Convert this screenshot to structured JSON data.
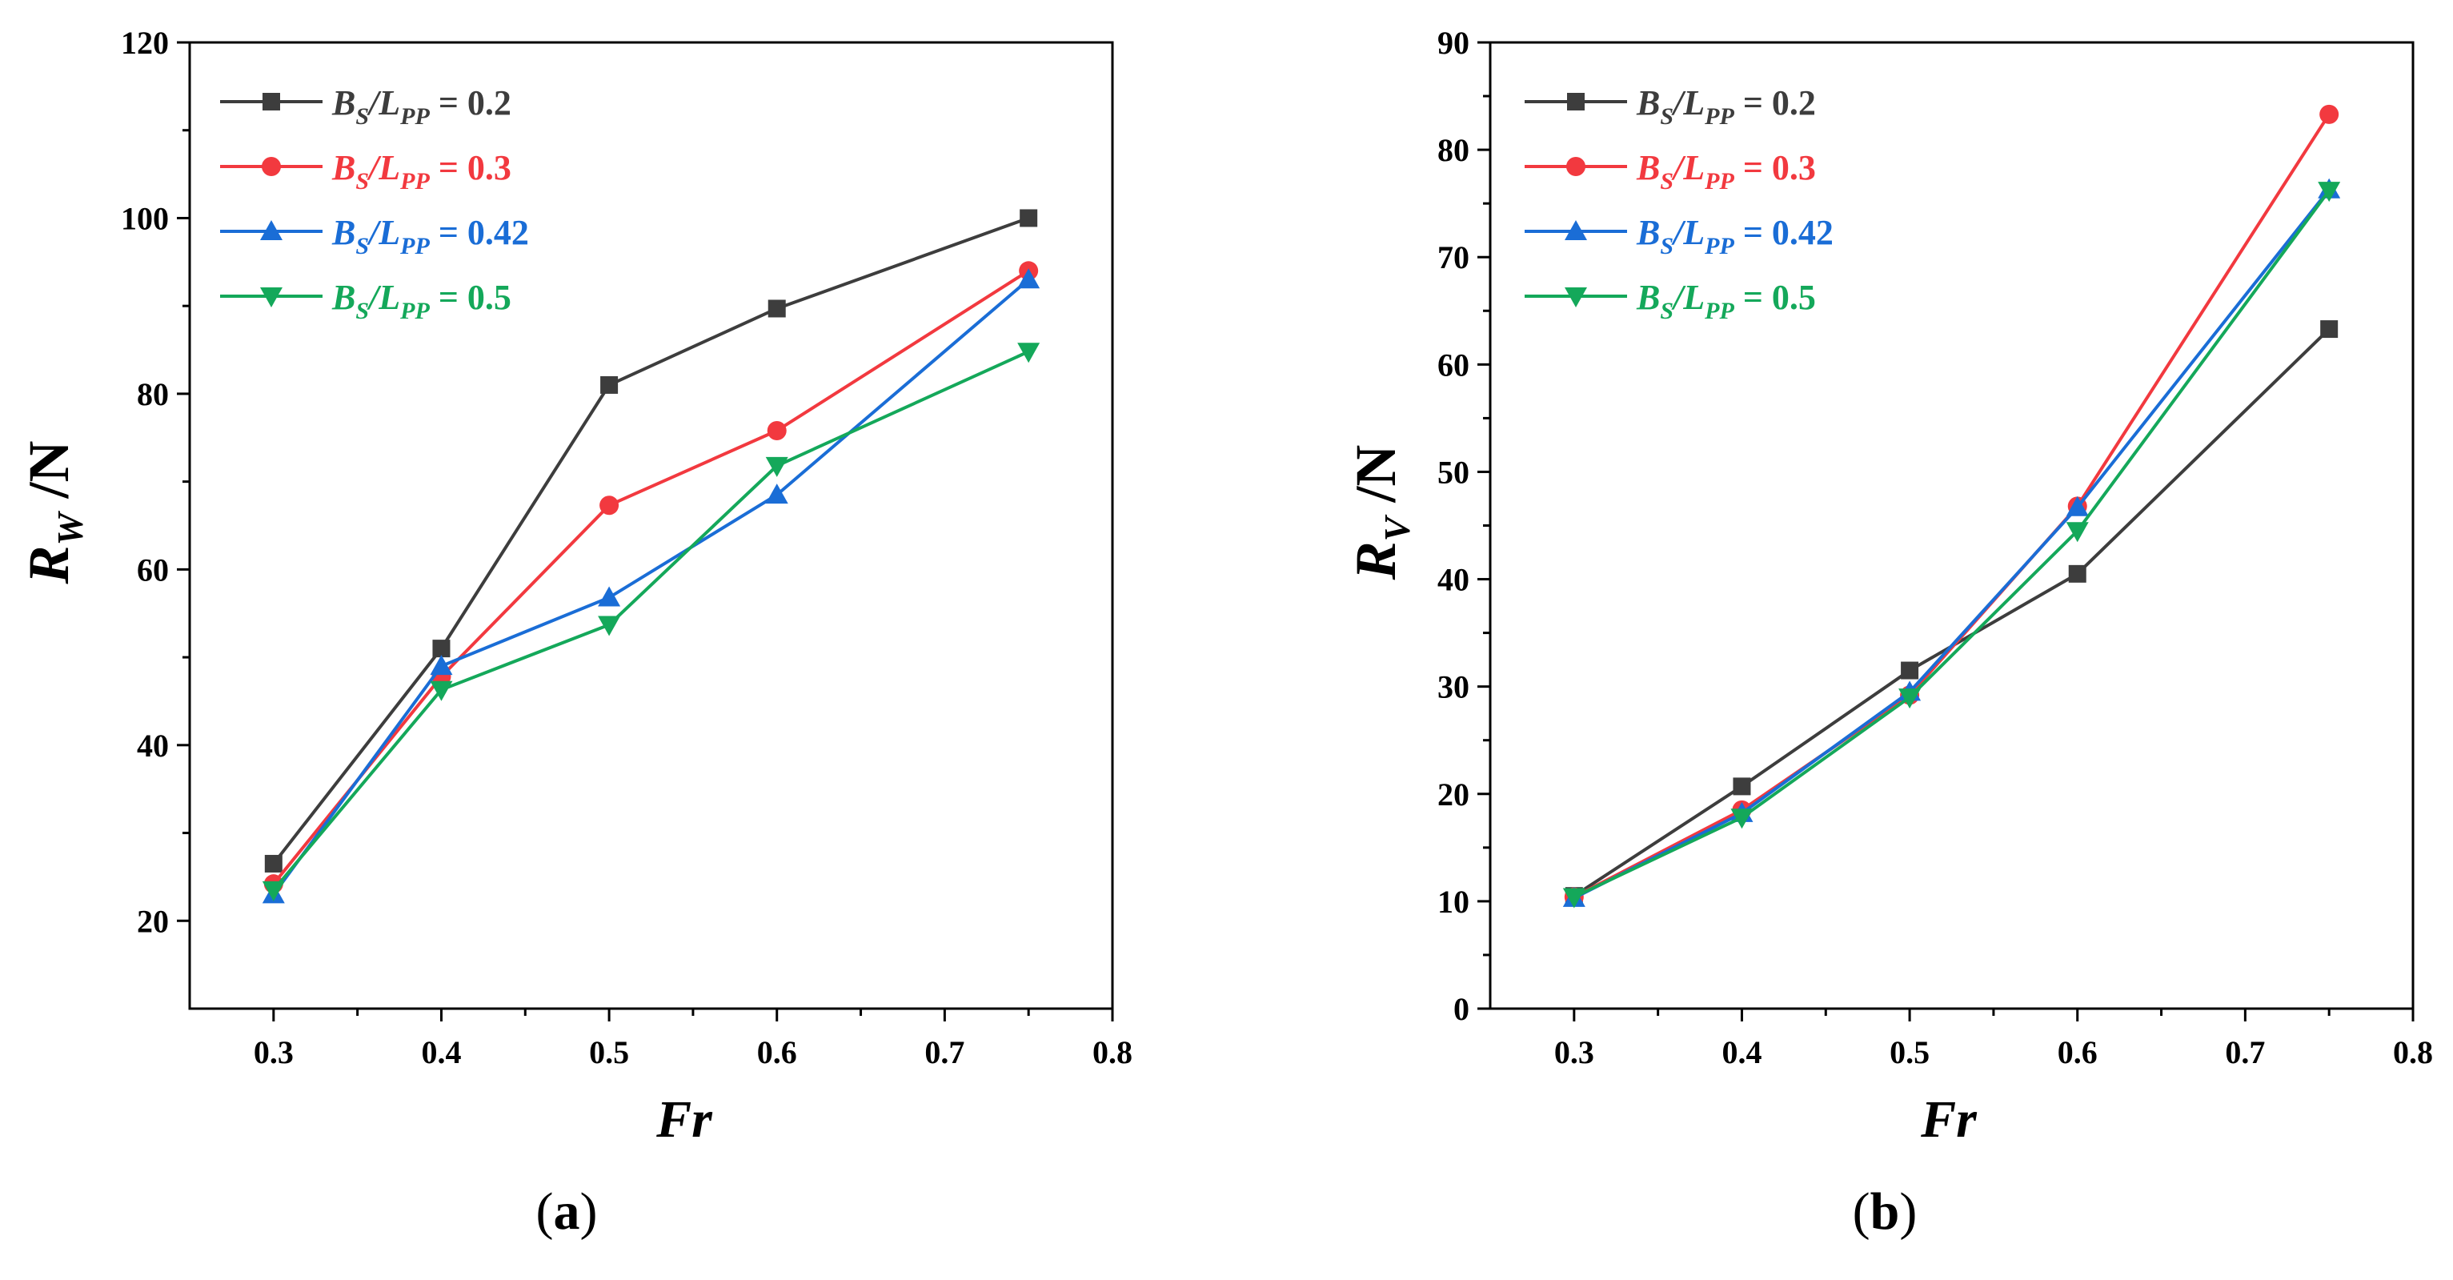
{
  "chart_data": [
    {
      "type": "line",
      "panel": "a",
      "caption": {
        "open": "(",
        "letter": "a",
        "close": ")"
      },
      "x": [
        0.3,
        0.4,
        0.5,
        0.6,
        0.75
      ],
      "xlabel": "Fr",
      "ylabel": {
        "main": "R",
        "sub": "W",
        "unit": " /N"
      },
      "xlim": [
        0.25,
        0.8
      ],
      "ylim": [
        10,
        120
      ],
      "xticks": [
        "0.3",
        "0.4",
        "0.5",
        "0.6",
        "0.7",
        "0.8"
      ],
      "yticks": [
        "20",
        "40",
        "60",
        "80",
        "100",
        "120"
      ],
      "legend_position": "top-left",
      "series": [
        {
          "name": "B_S/L_PP = 0.2",
          "legend": {
            "b": "B",
            "s": "S",
            "slash": "/L",
            "pp": "PP",
            "eq": " = 0.2"
          },
          "color": "#3d3d3d",
          "marker": "square",
          "values": [
            26.5,
            51,
            81,
            89.7,
            100
          ]
        },
        {
          "name": "B_S/L_PP = 0.3",
          "legend": {
            "b": "B",
            "s": "S",
            "slash": "/L",
            "pp": "PP",
            "eq": " = 0.3"
          },
          "color": "#f2393f",
          "marker": "circle",
          "values": [
            24.2,
            47.8,
            67.3,
            75.8,
            94
          ]
        },
        {
          "name": "B_S/L_PP = 0.42",
          "legend": {
            "b": "B",
            "s": "S",
            "slash": "/L",
            "pp": "PP",
            "eq": " = 0.42"
          },
          "color": "#1a6dd6",
          "marker": "triangle-up",
          "values": [
            23,
            49,
            56.8,
            68.5,
            93
          ]
        },
        {
          "name": "B_S/L_PP = 0.5",
          "legend": {
            "b": "B",
            "s": "S",
            "slash": "/L",
            "pp": "PP",
            "eq": " = 0.5"
          },
          "color": "#14a85a",
          "marker": "triangle-down",
          "values": [
            23.5,
            46.3,
            53.7,
            71.8,
            84.8
          ]
        }
      ]
    },
    {
      "type": "line",
      "panel": "b",
      "caption": {
        "open": "(",
        "letter": "b",
        "close": ")"
      },
      "x": [
        0.3,
        0.4,
        0.5,
        0.6,
        0.75
      ],
      "xlabel": "Fr",
      "ylabel": {
        "main": "R",
        "sub": "V",
        "unit": " /N"
      },
      "xlim": [
        0.25,
        0.8
      ],
      "ylim": [
        0,
        90
      ],
      "xticks": [
        "0.3",
        "0.4",
        "0.5",
        "0.6",
        "0.7",
        "0.8"
      ],
      "yticks": [
        "0",
        "10",
        "20",
        "30",
        "40",
        "50",
        "60",
        "70",
        "80",
        "90"
      ],
      "legend_position": "top-left",
      "series": [
        {
          "name": "B_S/L_PP = 0.2",
          "legend": {
            "b": "B",
            "s": "S",
            "slash": "/L",
            "pp": "PP",
            "eq": " = 0.2"
          },
          "color": "#3d3d3d",
          "marker": "square",
          "values": [
            10.5,
            20.7,
            31.5,
            40.5,
            63.3
          ]
        },
        {
          "name": "B_S/L_PP = 0.3",
          "legend": {
            "b": "B",
            "s": "S",
            "slash": "/L",
            "pp": "PP",
            "eq": " = 0.3"
          },
          "color": "#f2393f",
          "marker": "circle",
          "values": [
            10.4,
            18.5,
            29.2,
            46.8,
            83.3
          ]
        },
        {
          "name": "B_S/L_PP = 0.42",
          "legend": {
            "b": "B",
            "s": "S",
            "slash": "/L",
            "pp": "PP",
            "eq": " = 0.42"
          },
          "color": "#1a6dd6",
          "marker": "triangle-up",
          "values": [
            10.3,
            18.2,
            29.5,
            46.7,
            76.3
          ]
        },
        {
          "name": "B_S/L_PP = 0.5",
          "legend": {
            "b": "B",
            "s": "S",
            "slash": "/L",
            "pp": "PP",
            "eq": " = 0.5"
          },
          "color": "#14a85a",
          "marker": "triangle-down",
          "values": [
            10.4,
            17.8,
            29,
            44.5,
            76.2
          ]
        }
      ]
    }
  ]
}
